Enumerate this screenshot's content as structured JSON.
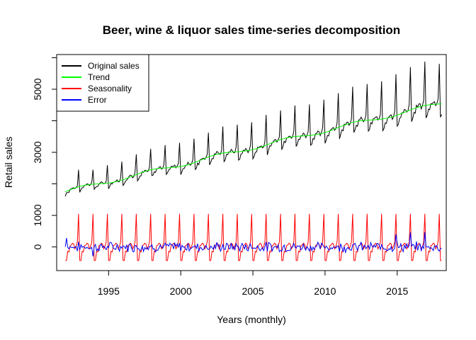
{
  "chart_data": {
    "type": "line",
    "title": "Beer, wine & liquor sales time-series decomposition",
    "xlabel": "Years (monthly)",
    "ylabel": "Retail sales",
    "xlim": [
      1991.4,
      2018.4
    ],
    "ylim": [
      -750,
      6100
    ],
    "x_ticks": [
      1995,
      2000,
      2005,
      2010,
      2015
    ],
    "x_tick_labels": [
      "1995",
      "2000",
      "2005",
      "2010",
      "2015"
    ],
    "y_ticks": [
      0,
      1000,
      2000,
      3000,
      4000,
      5000,
      6000
    ],
    "y_tick_labels": [
      "0",
      "1000",
      "",
      "3000",
      "",
      "5000",
      ""
    ],
    "x_start": 1992.0,
    "x_step": 0.083333,
    "legend": {
      "position": "top-left",
      "entries": [
        {
          "label": "Original sales",
          "color": "#000000"
        },
        {
          "label": "Trend",
          "color": "#00ff00"
        },
        {
          "label": "Seasonality",
          "color": "#ff0000"
        },
        {
          "label": "Error",
          "color": "#0000ff"
        }
      ]
    },
    "series": [
      {
        "name": "Original sales",
        "color": "#000000",
        "trend_start": 1750,
        "trend_end": 4550,
        "seasonal_scale_start": 0.45,
        "seasonal_scale_end": 1.25,
        "seasonal_pattern": [
          -330,
          -260,
          -110,
          -120,
          30,
          30,
          70,
          60,
          -40,
          10,
          150,
          1050
        ]
      },
      {
        "name": "Trend",
        "color": "#00ff00",
        "start_value": 1750,
        "end_value": 4550
      },
      {
        "name": "Seasonality",
        "color": "#ff0000",
        "pattern": [
          -430,
          -430,
          -140,
          -160,
          40,
          60,
          120,
          90,
          -60,
          20,
          160,
          1050
        ]
      },
      {
        "name": "Error",
        "color": "#0000ff",
        "typical_range": [
          -250,
          250
        ],
        "spikes": [
          {
            "x": 1992.1,
            "y": 280
          },
          {
            "x": 1993.9,
            "y": -300
          },
          {
            "x": 2014.9,
            "y": 400
          },
          {
            "x": 2015.9,
            "y": 460
          },
          {
            "x": 2016.9,
            "y": 470
          }
        ]
      }
    ]
  }
}
